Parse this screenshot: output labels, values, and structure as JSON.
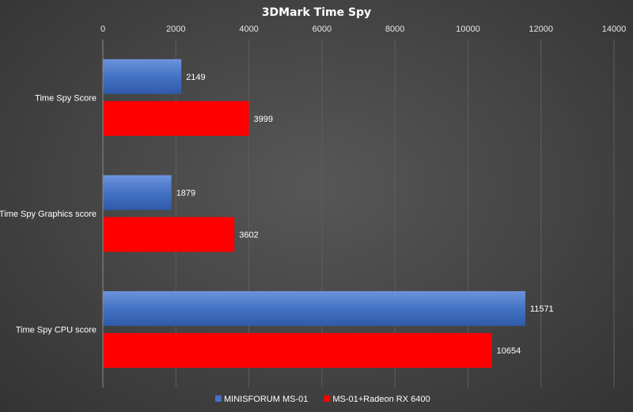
{
  "chart_data": {
    "type": "bar",
    "orientation": "horizontal",
    "title": "3DMark Time Spy",
    "categories": [
      "Time Spy Score",
      "Time Spy Graphics score",
      "Time Spy CPU score"
    ],
    "series": [
      {
        "name": "MINISFORUM MS-01",
        "values": [
          2149,
          1879,
          11571
        ],
        "color": "#4472c4"
      },
      {
        "name": "MS-01+Radeon RX 6400",
        "values": [
          3999,
          3602,
          10654
        ],
        "color": "#ff0000"
      }
    ],
    "xlim": [
      0,
      14000
    ],
    "x_ticks": [
      0,
      2000,
      4000,
      6000,
      8000,
      10000,
      12000,
      14000
    ],
    "x_axis_position": "top",
    "grid": true,
    "legend_position": "bottom",
    "data_labels": true
  }
}
